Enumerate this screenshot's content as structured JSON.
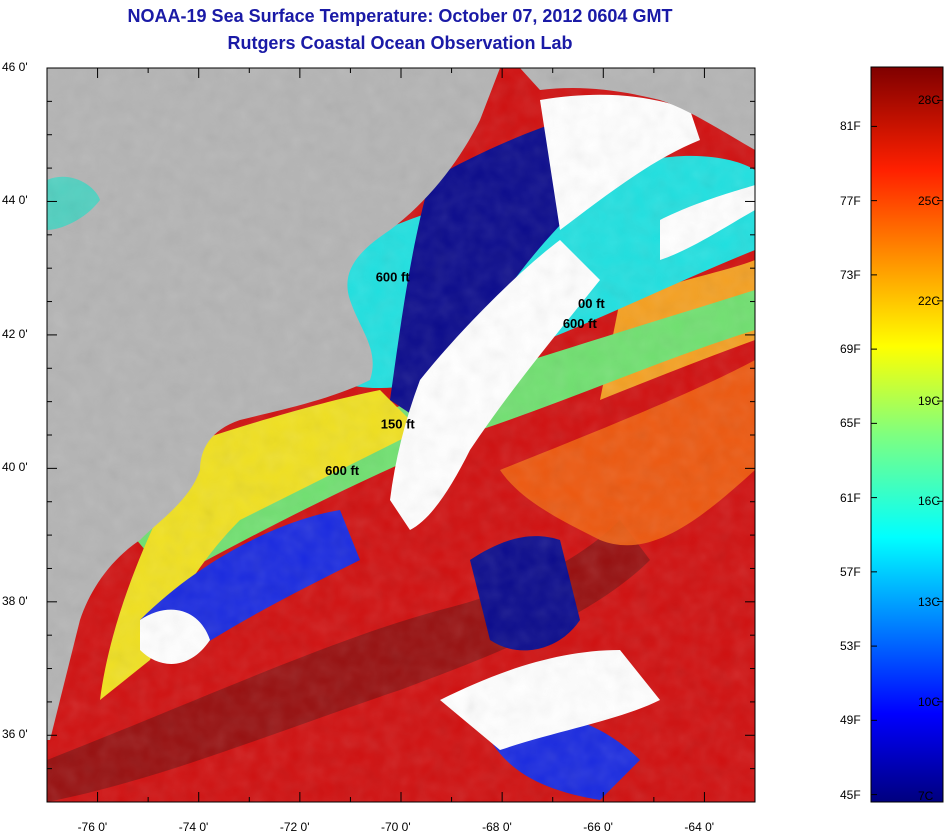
{
  "title": "NOAA-19 Sea Surface Temperature:  October 07, 2012 0604 GMT",
  "subtitle": "Rutgers Coastal Ocean Observation Lab",
  "map": {
    "lon_range": [
      -77,
      -63
    ],
    "lat_range": [
      35,
      46
    ],
    "lon_ticks": [
      "-76 0'",
      "-74 0'",
      "-72 0'",
      "-70 0'",
      "-68 0'",
      "-66 0'",
      "-64 0'"
    ],
    "lat_ticks": [
      "46 0'",
      "44 0'",
      "42 0'",
      "40 0'",
      "38 0'",
      "36 0'"
    ],
    "depth_labels": [
      {
        "text": "600 ft",
        "lon": -70.5,
        "lat": 42.8
      },
      {
        "text": "600 ft",
        "lon": -66.8,
        "lat": 42.1
      },
      {
        "text": "600 ft",
        "lon": -71.5,
        "lat": 39.9
      },
      {
        "text": "150 ft",
        "lon": -70.4,
        "lat": 40.6
      }
    ],
    "depth_label_partial": {
      "text": "00 ft",
      "lon": -66.5,
      "lat": 42.4
    },
    "colors": {
      "land": "#b4b4b4",
      "cloud": "#ffffff",
      "cold": "#0a0a8c",
      "cyan": "#20e0e0",
      "yellow": "#f0e020",
      "orange": "#f06010",
      "red": "#d01010",
      "darkred": "#901010"
    }
  },
  "colorbar": {
    "fahrenheit_labels": [
      "81F",
      "77F",
      "73F",
      "69F",
      "65F",
      "61F",
      "57F",
      "53F",
      "49F",
      "45F"
    ],
    "celsius_labels": [
      "28C",
      "25C",
      "22C",
      "19C",
      "16C",
      "13C",
      "10C",
      "7C"
    ],
    "range_c": [
      7,
      29
    ]
  }
}
